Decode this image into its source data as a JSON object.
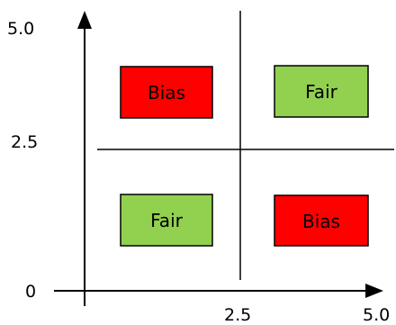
{
  "axes": {
    "y_ticks": [
      "5.0",
      "2.5",
      "0"
    ],
    "x_ticks": [
      "2.5",
      "5.0"
    ]
  },
  "quadrants": {
    "top_left": {
      "label": "Bias",
      "color": "#ff0000"
    },
    "top_right": {
      "label": "Fair",
      "color": "#92d050"
    },
    "bottom_left": {
      "label": "Fair",
      "color": "#92d050"
    },
    "bottom_right": {
      "label": "Bias",
      "color": "#ff0000"
    }
  },
  "colors": {
    "line": "#000000",
    "box_border": "#000000"
  }
}
